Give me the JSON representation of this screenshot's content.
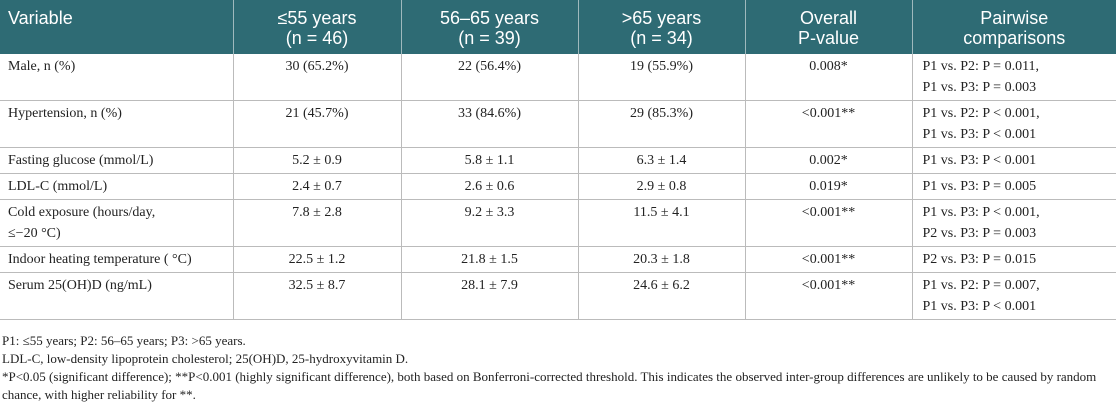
{
  "table": {
    "headers": [
      [
        "Variable"
      ],
      [
        "≤55 years",
        "(n = 46)"
      ],
      [
        "56–65 years",
        "(n = 39)"
      ],
      [
        ">65 years",
        "(n = 34)"
      ],
      [
        "Overall",
        "P-value"
      ],
      [
        "Pairwise",
        "comparisons"
      ]
    ],
    "rows": [
      [
        "Male, n (%)",
        "30 (65.2%)",
        "22 (56.4%)",
        "19 (55.9%)",
        "0.008*",
        [
          "P1 vs. P2: P = 0.011,",
          "P1 vs. P3: P = 0.003"
        ]
      ],
      [
        "Hypertension, n (%)",
        "21 (45.7%)",
        "33 (84.6%)",
        "29 (85.3%)",
        "<0.001**",
        [
          "P1 vs. P2: P < 0.001,",
          "P1 vs. P3: P < 0.001"
        ]
      ],
      [
        "Fasting glucose (mmol/L)",
        "5.2 ± 0.9",
        "5.8 ± 1.1",
        "6.3 ± 1.4",
        "0.002*",
        [
          "P1 vs. P3: P < 0.001"
        ]
      ],
      [
        "LDL-C (mmol/L)",
        "2.4 ± 0.7",
        "2.6 ± 0.6",
        "2.9 ± 0.8",
        "0.019*",
        [
          "P1 vs. P3: P = 0.005"
        ]
      ],
      [
        [
          "Cold exposure (hours/day,",
          "≤−20 °C)"
        ],
        "7.8 ± 2.8",
        "9.2 ± 3.3",
        "11.5 ± 4.1",
        "<0.001**",
        [
          "P1 vs. P3: P < 0.001,",
          "P2 vs. P3: P = 0.003"
        ]
      ],
      [
        "Indoor heating temperature ( °C)",
        "22.5 ± 1.2",
        "21.8 ± 1.5",
        "20.3 ± 1.8",
        "<0.001**",
        [
          "P2 vs. P3: P = 0.015"
        ]
      ],
      [
        "Serum 25(OH)D (ng/mL)",
        "32.5 ± 8.7",
        "28.1 ± 7.9",
        "24.6 ± 6.2",
        "<0.001**",
        [
          "P1 vs. P2: P = 0.007,",
          "P1 vs. P3: P < 0.001"
        ]
      ]
    ]
  },
  "footnotes": [
    "P1: ≤55 years; P2: 56–65 years; P3: >65 years.",
    "LDL-C, low-density lipoprotein cholesterol; 25(OH)D, 25-hydroxyvitamin D.",
    "*P<0.05 (significant difference); **P<0.001 (highly significant difference), both based on Bonferroni-corrected threshold. This indicates the observed inter-group differences are unlikely to be caused by random chance, with higher reliability for **."
  ]
}
